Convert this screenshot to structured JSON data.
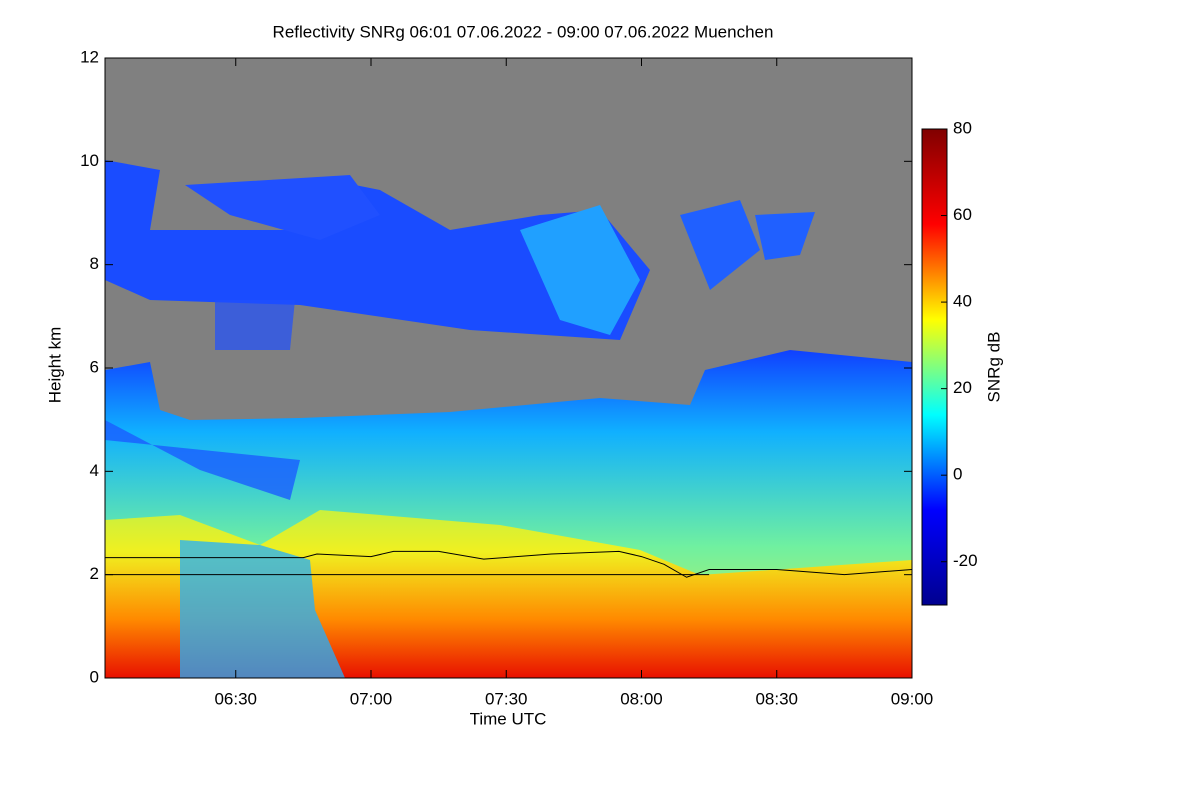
{
  "chart_data": {
    "type": "heatmap",
    "title": "Reflectivity SNRg   06:01 07.06.2022 - 09:00 07.06.2022 Muenchen",
    "x_label": "Time UTC",
    "y_label": "Height km",
    "colorbar_label": "SNRg dB",
    "xlim": [
      "06:01",
      "09:00"
    ],
    "xticks": [
      "06:30",
      "07:00",
      "07:30",
      "08:00",
      "08:30",
      "09:00"
    ],
    "ylim": [
      0,
      12
    ],
    "yticks": [
      0,
      2,
      4,
      6,
      8,
      10,
      12
    ],
    "clim": [
      -30,
      80
    ],
    "cticks": [
      -20,
      0,
      20,
      40,
      60,
      80
    ],
    "colormap": [
      "#00008f",
      "#0000ff",
      "#00ffff",
      "#ffff00",
      "#ff0000",
      "#800000"
    ],
    "background_color": "#808080",
    "series": [
      {
        "color": "#000000",
        "x": [
          "06:01",
          "06:45",
          "06:48",
          "07:00",
          "07:05",
          "07:15",
          "07:25",
          "07:40",
          "07:55",
          "08:00",
          "08:05",
          "08:10",
          "08:15",
          "08:30",
          "08:45",
          "09:00"
        ],
        "values": [
          2.33,
          2.33,
          2.4,
          2.35,
          2.45,
          2.45,
          2.3,
          2.4,
          2.45,
          2.35,
          2.2,
          1.95,
          2.1,
          2.1,
          2.0,
          2.1
        ]
      },
      {
        "color": "#000000",
        "x": [
          "06:01",
          "08:15"
        ],
        "values": [
          2.0,
          2.0
        ]
      }
    ]
  }
}
